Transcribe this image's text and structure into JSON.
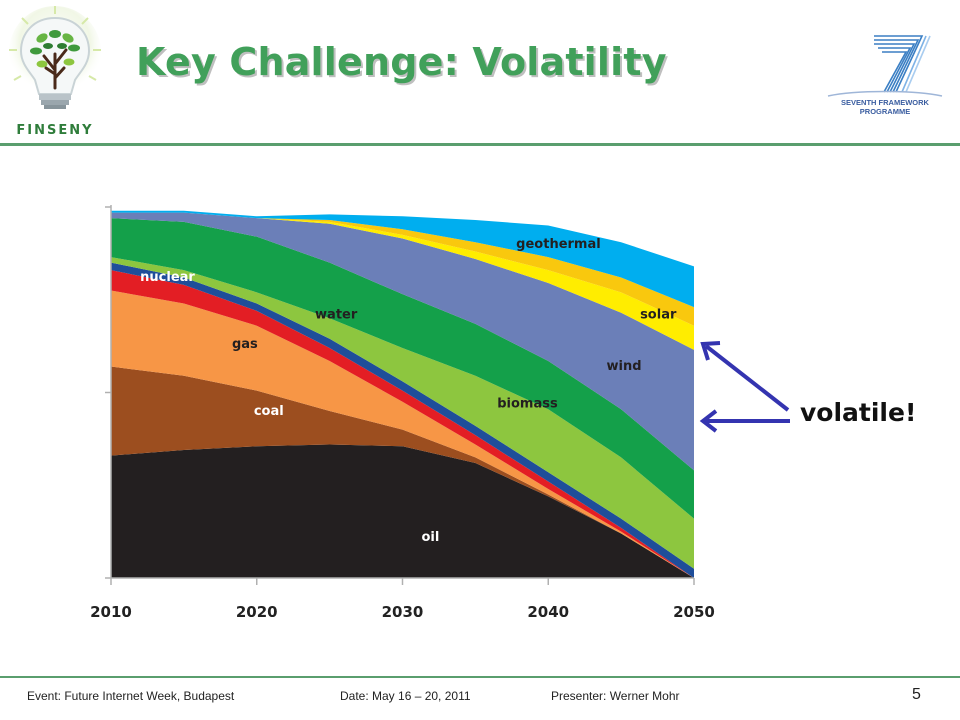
{
  "slide": {
    "title": "Key Challenge: Volatility",
    "left_logo_text": "FINSENY",
    "right_logo_line1": "SEVENTH FRAMEWORK",
    "right_logo_line2": "PROGRAMME",
    "annotation": "volatile!",
    "footer_event": "Event: Future Internet Week, Budapest",
    "footer_date": "Date: May 16 – 20, 2011",
    "footer_presenter": "Presenter: Werner Mohr",
    "page_number": "5",
    "colors": {
      "title_green": "#41a05a",
      "rule_green": "#5a9e6e",
      "arrow_blue": "#3434b0"
    }
  },
  "chart_data": {
    "type": "area",
    "stacked": true,
    "title": "",
    "xlabel": "",
    "ylabel": "",
    "x": [
      2010,
      2015,
      2020,
      2025,
      2030,
      2035,
      2040,
      2045,
      2050
    ],
    "xticks": [
      "2010",
      "2020",
      "2030",
      "2040",
      "2050"
    ],
    "xlim": [
      2010,
      2050
    ],
    "ylim": [
      0,
      100
    ],
    "series": [
      {
        "name": "oil",
        "color": "#231f20",
        "values": [
          33.0,
          34.5,
          35.5,
          36.0,
          35.5,
          31.0,
          22.0,
          12.0,
          0.0
        ]
      },
      {
        "name": "coal",
        "color": "#9c4e1f",
        "values": [
          24.0,
          20.0,
          15.0,
          9.0,
          4.5,
          1.5,
          0.5,
          0.0,
          0.0
        ]
      },
      {
        "name": "gas",
        "color": "#f79646",
        "values": [
          20.5,
          19.5,
          17.5,
          13.5,
          7.5,
          3.5,
          1.5,
          0.5,
          0.0
        ]
      },
      {
        "name": "nuclear",
        "color": "#e31e24",
        "values": [
          5.5,
          5.0,
          4.0,
          3.5,
          3.0,
          2.5,
          2.0,
          1.0,
          0.0
        ]
      },
      {
        "name": "water",
        "color": "#1f4e9a",
        "values": [
          2.0,
          2.0,
          2.0,
          2.5,
          2.5,
          2.5,
          2.5,
          2.5,
          2.5
        ]
      },
      {
        "name": "biomass",
        "color": "#8dc63f",
        "values": [
          1.5,
          2.0,
          3.0,
          5.5,
          9.0,
          13.5,
          17.0,
          16.5,
          13.5
        ]
      },
      {
        "name": "wind",
        "color": "#14a04a",
        "values": [
          10.5,
          13.0,
          15.0,
          15.0,
          14.5,
          14.0,
          13.0,
          13.0,
          13.0
        ]
      },
      {
        "name": "solar",
        "color": "#6b7fb8",
        "values": [
          1.5,
          2.5,
          5.0,
          10.5,
          15.0,
          17.5,
          21.0,
          26.0,
          32.5
        ]
      },
      {
        "name": "geothermal",
        "color": "#ffed00",
        "values": [
          0.0,
          0.0,
          0.0,
          0.5,
          1.0,
          2.0,
          3.5,
          5.5,
          6.5
        ]
      },
      {
        "name": "",
        "color": "#f9c80e",
        "values": [
          0.0,
          0.0,
          0.0,
          0.5,
          1.5,
          2.5,
          3.5,
          4.0,
          5.0
        ]
      },
      {
        "name": "",
        "color": "#00aeef",
        "values": [
          0.5,
          0.5,
          0.5,
          1.5,
          3.5,
          6.0,
          8.5,
          9.5,
          11.0
        ]
      }
    ],
    "labels": [
      {
        "text": "nuclear",
        "x": 2012.0,
        "y": 80.0,
        "color": "#ffffff"
      },
      {
        "text": "gas",
        "x": 2018.3,
        "y": 62.0,
        "color": "#231f20"
      },
      {
        "text": "coal",
        "x": 2019.8,
        "y": 44.0,
        "color": "#ffffff"
      },
      {
        "text": "water",
        "x": 2024.0,
        "y": 70.0,
        "color": "#231f20"
      },
      {
        "text": "oil",
        "x": 2031.3,
        "y": 10.0,
        "color": "#ffffff"
      },
      {
        "text": "biomass",
        "x": 2036.5,
        "y": 46.0,
        "color": "#231f20"
      },
      {
        "text": "geothermal",
        "x": 2037.8,
        "y": 89.0,
        "color": "#231f20"
      },
      {
        "text": "wind",
        "x": 2044.0,
        "y": 56.0,
        "color": "#231f20"
      },
      {
        "text": "solar",
        "x": 2046.3,
        "y": 70.0,
        "color": "#231f20"
      }
    ],
    "grid": false,
    "legend": "none"
  }
}
